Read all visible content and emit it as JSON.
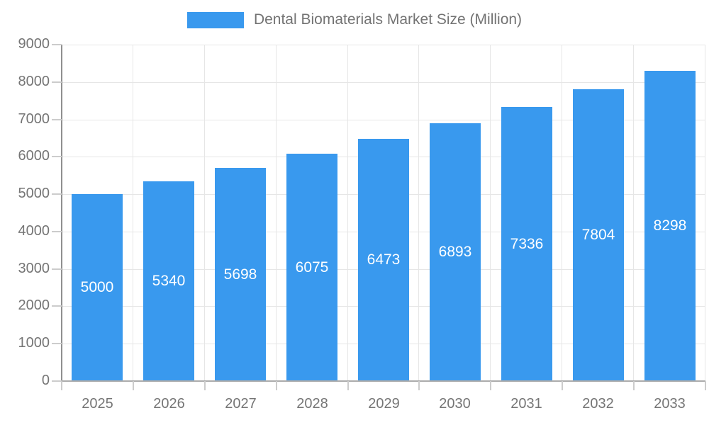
{
  "legend": {
    "label": "Dental Biomaterials Market Size (Million)"
  },
  "chart_data": {
    "type": "bar",
    "title": "Dental Biomaterials Market Size (Million)",
    "categories": [
      "2025",
      "2026",
      "2027",
      "2028",
      "2029",
      "2030",
      "2031",
      "2032",
      "2033"
    ],
    "values": [
      5000,
      5340,
      5698,
      6075,
      6473,
      6893,
      7336,
      7804,
      8298
    ],
    "xlabel": "",
    "ylabel": "",
    "ylim": [
      0,
      9000
    ],
    "ytick_step": 1000,
    "yticks": [
      "0",
      "1000",
      "2000",
      "3000",
      "4000",
      "5000",
      "6000",
      "7000",
      "8000",
      "9000"
    ],
    "grid": true,
    "legend_position": "top",
    "bar_color": "#3999EE",
    "bar_label_color": "#ffffff",
    "axis_text_color": "#757575",
    "gridline_color": "#e6e6e6"
  }
}
